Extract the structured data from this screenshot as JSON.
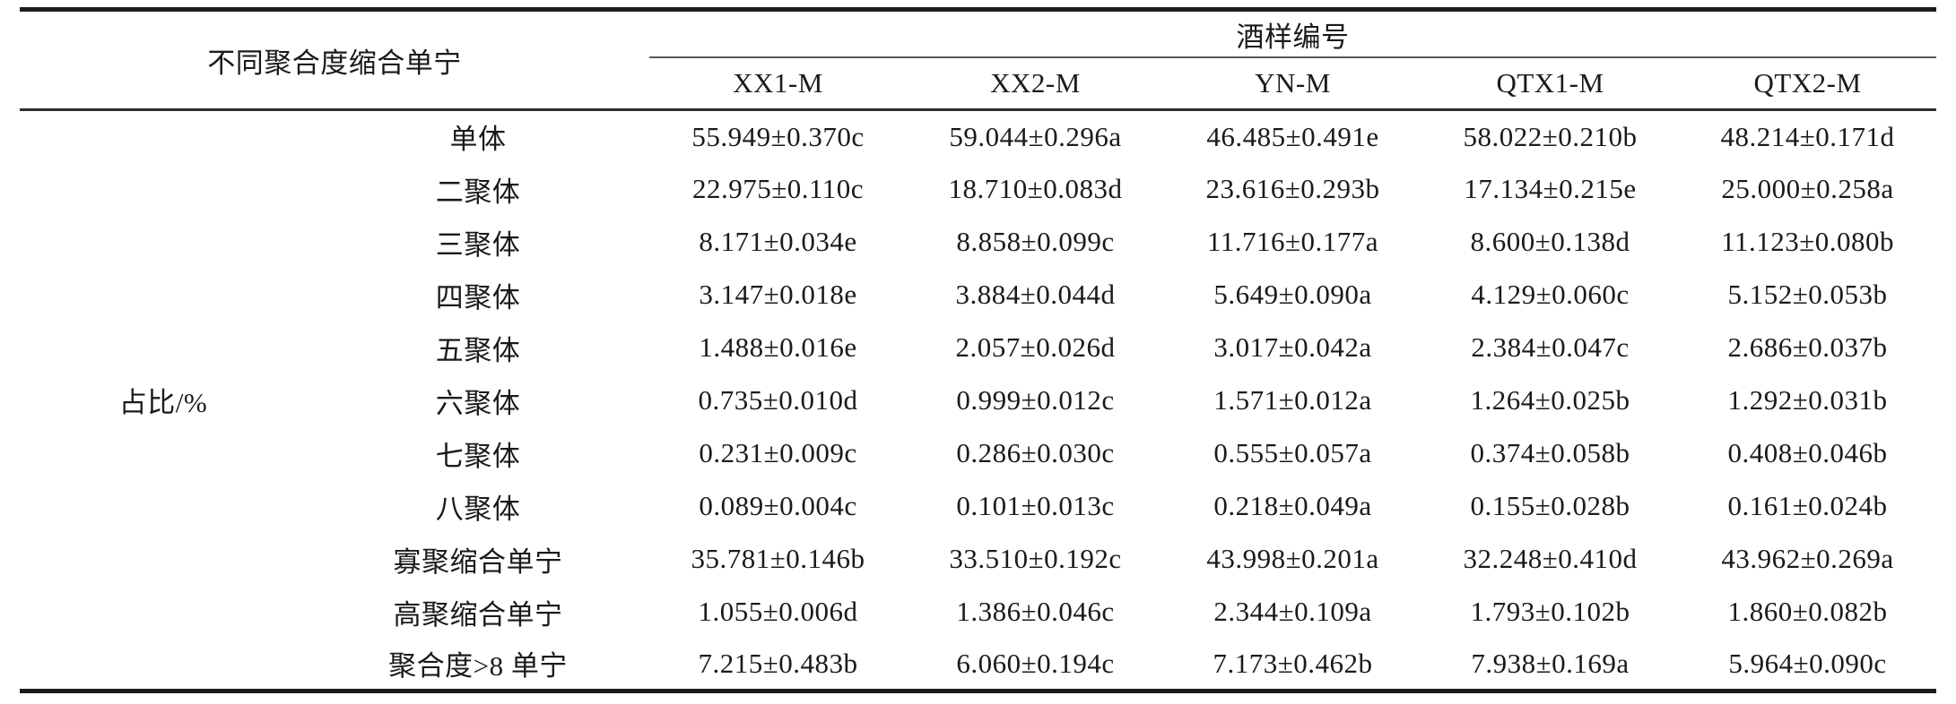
{
  "table": {
    "group_header": "不同聚合度缩合单宁",
    "spanner_header": "酒样编号",
    "row_group_label": "占比/%",
    "columns": [
      "XX1-M",
      "XX2-M",
      "YN-M",
      "QTX1-M",
      "QTX2-M"
    ],
    "rows": [
      {
        "label": "单体",
        "values": [
          "55.949±0.370c",
          "59.044±0.296a",
          "46.485±0.491e",
          "58.022±0.210b",
          "48.214±0.171d"
        ]
      },
      {
        "label": "二聚体",
        "values": [
          "22.975±0.110c",
          "18.710±0.083d",
          "23.616±0.293b",
          "17.134±0.215e",
          "25.000±0.258a"
        ]
      },
      {
        "label": "三聚体",
        "values": [
          "8.171±0.034e",
          "8.858±0.099c",
          "11.716±0.177a",
          "8.600±0.138d",
          "11.123±0.080b"
        ]
      },
      {
        "label": "四聚体",
        "values": [
          "3.147±0.018e",
          "3.884±0.044d",
          "5.649±0.090a",
          "4.129±0.060c",
          "5.152±0.053b"
        ]
      },
      {
        "label": "五聚体",
        "values": [
          "1.488±0.016e",
          "2.057±0.026d",
          "3.017±0.042a",
          "2.384±0.047c",
          "2.686±0.037b"
        ]
      },
      {
        "label": "六聚体",
        "values": [
          "0.735±0.010d",
          "0.999±0.012c",
          "1.571±0.012a",
          "1.264±0.025b",
          "1.292±0.031b"
        ]
      },
      {
        "label": "七聚体",
        "values": [
          "0.231±0.009c",
          "0.286±0.030c",
          "0.555±0.057a",
          "0.374±0.058b",
          "0.408±0.046b"
        ]
      },
      {
        "label": "八聚体",
        "values": [
          "0.089±0.004c",
          "0.101±0.013c",
          "0.218±0.049a",
          "0.155±0.028b",
          "0.161±0.024b"
        ]
      },
      {
        "label": "寡聚缩合单宁",
        "values": [
          "35.781±0.146b",
          "33.510±0.192c",
          "43.998±0.201a",
          "32.248±0.410d",
          "43.962±0.269a"
        ]
      },
      {
        "label": "高聚缩合单宁",
        "values": [
          "1.055±0.006d",
          "1.386±0.046c",
          "2.344±0.109a",
          "1.793±0.102b",
          "1.860±0.082b"
        ]
      },
      {
        "label": "聚合度>8 单宁",
        "values": [
          "7.215±0.483b",
          "6.060±0.194c",
          "7.173±0.462b",
          "7.938±0.169a",
          "5.964±0.090c"
        ]
      }
    ]
  },
  "colors": {
    "text": "#1a1a1a",
    "rule_thick": "#1c1c1c",
    "rule_thin": "#5a5a5a",
    "background": "#ffffff"
  }
}
